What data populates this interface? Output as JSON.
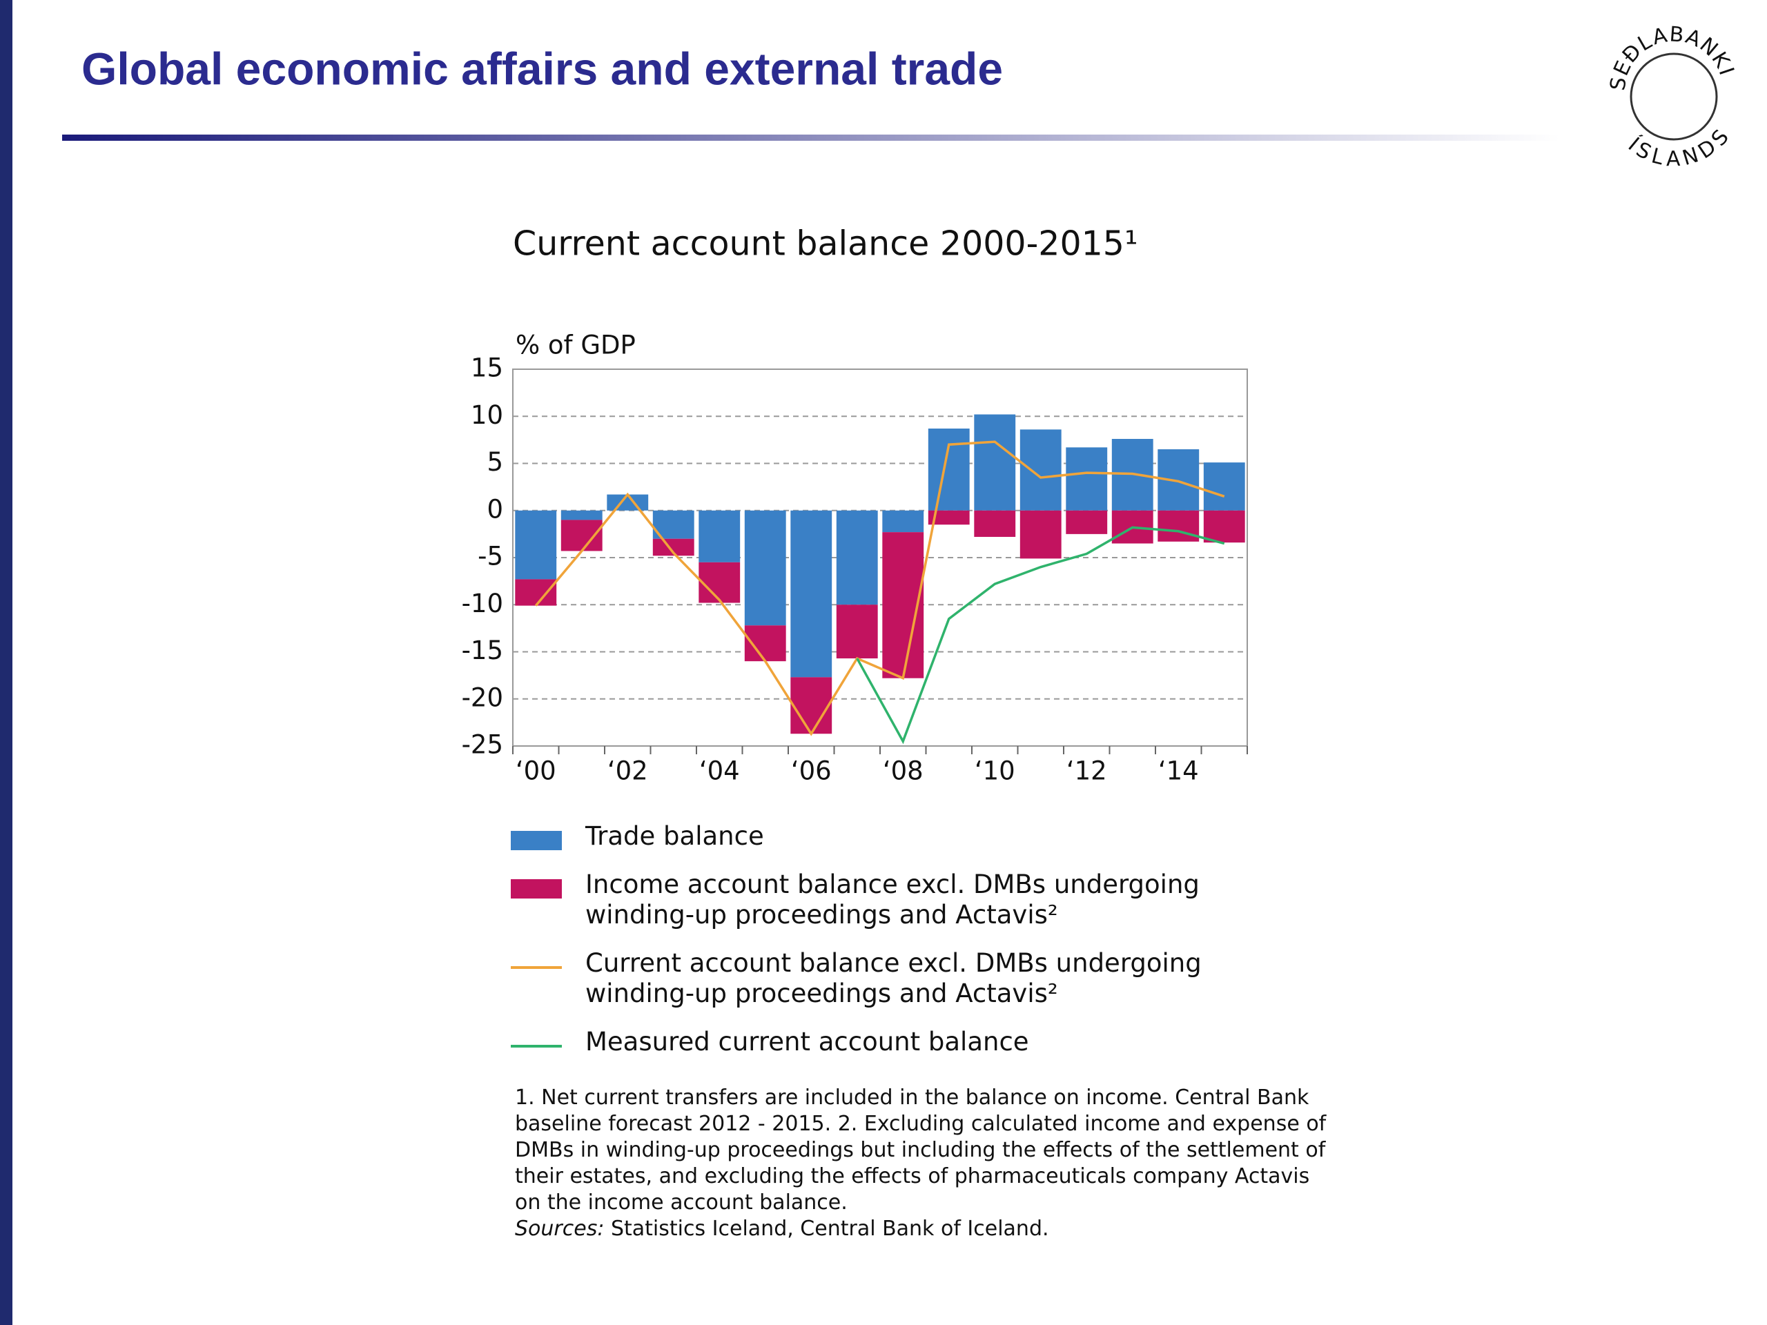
{
  "header": {
    "title": "Global economic affairs and external trade"
  },
  "logo": {
    "top": "SEÐLABANKI",
    "bottom": "ÍSLANDS"
  },
  "chart_data": {
    "type": "bar",
    "title": "Current account balance 2000-2015¹",
    "y_label": "% of GDP",
    "stacked": true,
    "categories": [
      "‘00",
      null,
      "‘02",
      null,
      "‘04",
      null,
      "‘06",
      null,
      "‘08",
      null,
      "‘10",
      null,
      "‘12",
      null,
      "‘14",
      null
    ],
    "series": [
      {
        "name": "Trade balance",
        "type": "bar",
        "color": "#3a80c6",
        "values": [
          -7.3,
          -1,
          1.7,
          -3,
          -5.5,
          -12.2,
          -17.7,
          -10,
          -2.3,
          8.7,
          10.2,
          8.6,
          6.7,
          7.6,
          6.5,
          5.1
        ]
      },
      {
        "name": "Income account balance excl. DMBs undergoing winding-up proceedings and Actavis²",
        "type": "bar",
        "color": "#c2135f",
        "values": [
          -2.8,
          -3.3,
          0,
          -1.8,
          -4.3,
          -3.8,
          -6,
          -5.7,
          -15.5,
          -1.5,
          -2.8,
          -5.1,
          -2.5,
          -3.5,
          -3.3,
          -3.4
        ]
      },
      {
        "name": "Current account balance excl. DMBs undergoing winding-up proceedings and Actavis²",
        "type": "line",
        "color": "#f0a43a",
        "values": [
          -10.1,
          -4.3,
          1.7,
          -4.5,
          -9.5,
          -16,
          -23.7,
          -15.7,
          -17.8,
          7,
          7.3,
          3.5,
          4,
          3.9,
          3.1,
          1.5
        ]
      },
      {
        "name": "Measured current account balance",
        "type": "line",
        "color": "#2fb36c",
        "values": [
          null,
          null,
          null,
          null,
          null,
          null,
          null,
          -15.7,
          -24.5,
          -11.5,
          -7.8,
          -6,
          -4.6,
          -1.8,
          -2.2,
          -3.5
        ]
      }
    ],
    "ylim": [
      -25,
      15
    ],
    "yticks": [
      -25,
      -20,
      -15,
      -10,
      -5,
      0,
      5,
      10,
      15
    ],
    "grid": true
  },
  "footnote": {
    "text": "1. Net current transfers are included in the balance on income. Central Bank baseline forecast 2012 - 2015. 2. Excluding calculated income and expense of DMBs in winding-up proceedings but including the effects of the settlement of their estates, and excluding the effects of pharmaceuticals company Actavis on the income account balance.",
    "sources_label": "Sources:",
    "sources_text": "Statistics Iceland, Central Bank of Iceland."
  }
}
